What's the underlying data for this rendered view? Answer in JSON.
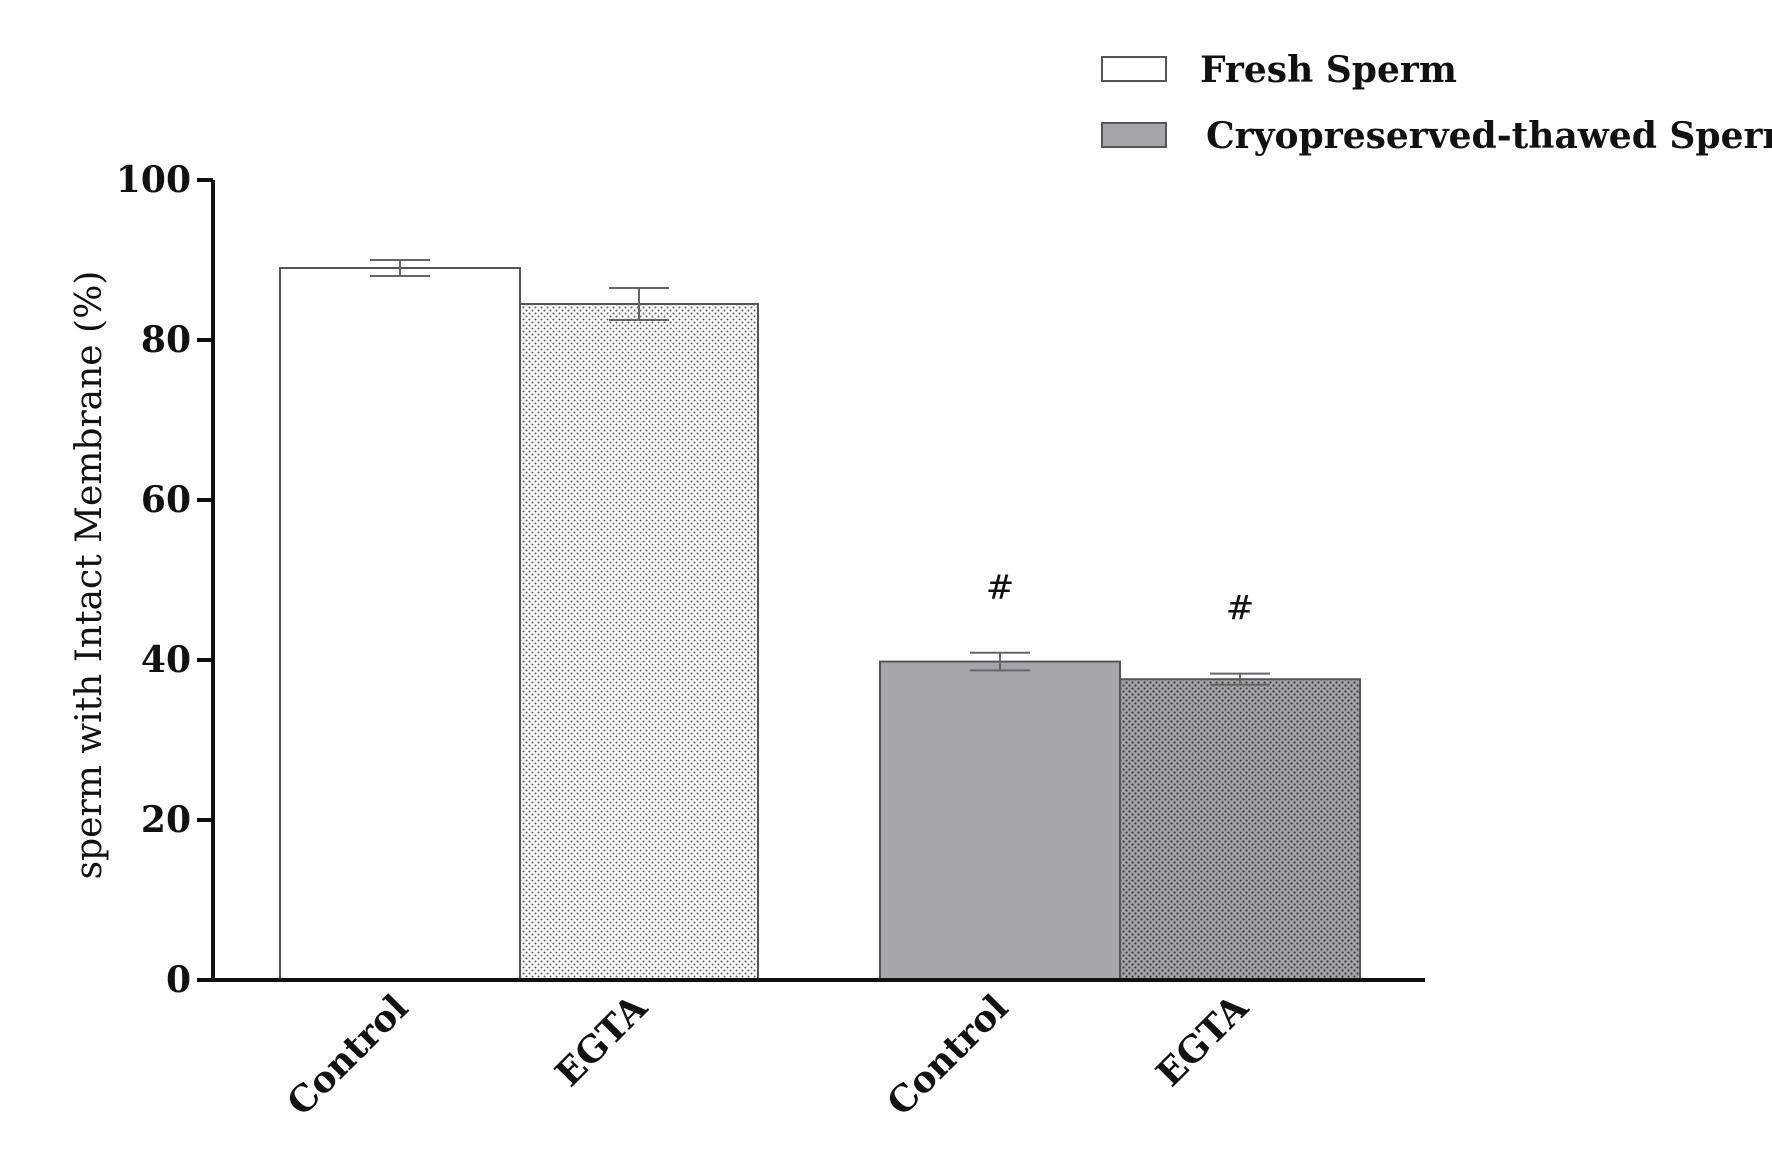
{
  "chart_data": {
    "type": "bar",
    "ylabel": "sperm with Intact Membrane (%)",
    "ylim": [
      0,
      100
    ],
    "yticks": [
      0,
      20,
      40,
      60,
      80,
      100
    ],
    "grid": false,
    "legend_position": "top-right",
    "legend": [
      {
        "label": "Fresh Sperm",
        "color": "#ffffff"
      },
      {
        "label": "Cryopreserved-thawed Sperm",
        "color": "#a6a6aa"
      }
    ],
    "bars": [
      {
        "group": "Fresh Sperm",
        "category": "Control",
        "value": 89,
        "error": 1.0,
        "fill": "#ffffff",
        "pattern": "none",
        "annotation": ""
      },
      {
        "group": "Fresh Sperm",
        "category": "EGTA",
        "value": 84.5,
        "error": 2.0,
        "fill": "#ffffff",
        "pattern": "dots-light",
        "annotation": ""
      },
      {
        "group": "Cryopreserved-thawed Sperm",
        "category": "Control",
        "value": 39.8,
        "error": 1.1,
        "fill": "#a6a6aa",
        "pattern": "none",
        "annotation": "#"
      },
      {
        "group": "Cryopreserved-thawed Sperm",
        "category": "EGTA",
        "value": 37.6,
        "error": 0.7,
        "fill": "#a6a6aa",
        "pattern": "dots-dark",
        "annotation": "#"
      }
    ]
  }
}
